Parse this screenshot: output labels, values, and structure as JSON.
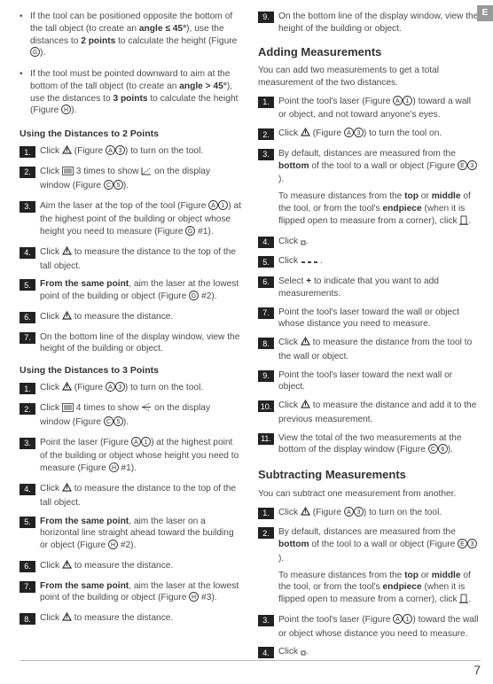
{
  "sideTab": "E",
  "pageNumber": "7",
  "left": {
    "bullets": [
      {
        "pre": "If the tool can be positioned opposite the bottom of the tall object (to create an ",
        "bold1": "angle ≤ 45°",
        "mid": "), use the distances to ",
        "bold2": "2 points",
        "post1": " to calculate the height (Figure ",
        "figIcon": "G",
        "post2": ")."
      },
      {
        "pre": "If the tool must be pointed downward to aim at the bottom of the tall object (to create an ",
        "bold1": "angle > 45°",
        "mid": "), use the distances to ",
        "bold2": "3 points",
        "post1": " to calculate the height (Figure ",
        "figIcon": "H",
        "post2": ")."
      }
    ],
    "heading2pts": "Using the Distances to 2 Points",
    "steps2": [
      {
        "n": "1.",
        "parts": [
          [
            "t",
            "Click "
          ],
          [
            "icon",
            "power"
          ],
          [
            "t",
            " (Figure "
          ],
          [
            "icon",
            "A"
          ],
          [
            "icon",
            "3"
          ],
          [
            "t",
            ") to turn on the tool."
          ]
        ]
      },
      {
        "n": "2.",
        "parts": [
          [
            "t",
            "Click "
          ],
          [
            "icon",
            "menu"
          ],
          [
            "t",
            " 3 times to show "
          ],
          [
            "icon",
            "angle2"
          ],
          [
            "t",
            " on the display window (Figure "
          ],
          [
            "icon",
            "C"
          ],
          [
            "icon",
            "5"
          ],
          [
            "t",
            ")."
          ]
        ]
      },
      {
        "n": "3.",
        "parts": [
          [
            "t",
            "Aim the laser at the top of the tool (Figure "
          ],
          [
            "icon",
            "A"
          ],
          [
            "icon",
            "1"
          ],
          [
            "t",
            ") at the highest point of the building or object whose height you need to measure (Figure "
          ],
          [
            "icon",
            "G"
          ],
          [
            "t",
            " #1)."
          ]
        ]
      },
      {
        "n": "4.",
        "parts": [
          [
            "t",
            "Click "
          ],
          [
            "icon",
            "power"
          ],
          [
            "t",
            " to measure the distance to the top of the tall object."
          ]
        ]
      },
      {
        "n": "5.",
        "parts": [
          [
            "b",
            "From the same point"
          ],
          [
            "t",
            ", aim the laser at the lowest point of the building or object (Figure "
          ],
          [
            "icon",
            "G"
          ],
          [
            "t",
            " #2)."
          ]
        ]
      },
      {
        "n": "6.",
        "parts": [
          [
            "t",
            "Click "
          ],
          [
            "icon",
            "power"
          ],
          [
            "t",
            " to measure the distance."
          ]
        ]
      },
      {
        "n": "7.",
        "parts": [
          [
            "t",
            "On the bottom line of the display window, view the height of the building or object."
          ]
        ]
      }
    ],
    "heading3pts": "Using the Distances to 3 Points",
    "steps3": [
      {
        "n": "1.",
        "parts": [
          [
            "t",
            "Click "
          ],
          [
            "icon",
            "power"
          ],
          [
            "t",
            " (Figure "
          ],
          [
            "icon",
            "A"
          ],
          [
            "icon",
            "3"
          ],
          [
            "t",
            ") to turn on the tool."
          ]
        ]
      },
      {
        "n": "2.",
        "parts": [
          [
            "t",
            "Click "
          ],
          [
            "icon",
            "menu"
          ],
          [
            "t",
            " 4 times to show "
          ],
          [
            "icon",
            "angle3"
          ],
          [
            "t",
            " on the display window (Figure "
          ],
          [
            "icon",
            "C"
          ],
          [
            "icon",
            "5"
          ],
          [
            "t",
            ")."
          ]
        ]
      },
      {
        "n": "3.",
        "parts": [
          [
            "t",
            "Point the laser (Figure "
          ],
          [
            "icon",
            "A"
          ],
          [
            "icon",
            "1"
          ],
          [
            "t",
            ") at the highest point of the building or object whose height you need to measure (Figure "
          ],
          [
            "icon",
            "H"
          ],
          [
            "t",
            " #1)."
          ]
        ]
      },
      {
        "n": "4.",
        "parts": [
          [
            "t",
            "Click "
          ],
          [
            "icon",
            "power"
          ],
          [
            "t",
            " to measure the distance to the top of the tall object."
          ]
        ]
      },
      {
        "n": "5.",
        "parts": [
          [
            "b",
            "From the same point"
          ],
          [
            "t",
            ", aim the laser on a horizontal line straight ahead toward the building or object (Figure "
          ],
          [
            "icon",
            "H"
          ],
          [
            "t",
            " #2)."
          ]
        ]
      },
      {
        "n": "6.",
        "parts": [
          [
            "t",
            "Click "
          ],
          [
            "icon",
            "power"
          ],
          [
            "t",
            " to measure the distance."
          ]
        ]
      },
      {
        "n": "7.",
        "parts": [
          [
            "b",
            "From the same point"
          ],
          [
            "t",
            ", aim the laser at the lowest point of the building or object (Figure "
          ],
          [
            "icon",
            "H"
          ],
          [
            "t",
            " #3)."
          ]
        ]
      },
      {
        "n": "8.",
        "parts": [
          [
            "t",
            "Click "
          ],
          [
            "icon",
            "power"
          ],
          [
            "t",
            " to measure the distance."
          ]
        ]
      }
    ]
  },
  "right": {
    "topStep": {
      "n": "9.",
      "parts": [
        [
          "t",
          "On the bottom line of the display window, view the height of the building or object."
        ]
      ]
    },
    "headingAdd": "Adding Measurements",
    "addIntro": "You can add two measurements to get a total measurement of the two distances.",
    "addSteps": [
      {
        "n": "1.",
        "parts": [
          [
            "t",
            "Point the tool's laser (Figure "
          ],
          [
            "icon",
            "A"
          ],
          [
            "icon",
            "1"
          ],
          [
            "t",
            ") toward a wall or object, and not toward anyone's eyes."
          ]
        ]
      },
      {
        "n": "2.",
        "parts": [
          [
            "t",
            "Click "
          ],
          [
            "icon",
            "power"
          ],
          [
            "t",
            " (Figure "
          ],
          [
            "icon",
            "A"
          ],
          [
            "icon",
            "3"
          ],
          [
            "t",
            ") to turn the tool on."
          ]
        ]
      },
      {
        "n": "3.",
        "parts": [
          [
            "t",
            "By default, distances are measured from the "
          ],
          [
            "b",
            "bottom"
          ],
          [
            "t",
            " of the tool to a wall or object (Figure "
          ],
          [
            "icon",
            "E"
          ],
          [
            "icon",
            "3"
          ],
          [
            "t",
            ")."
          ]
        ],
        "sub": [
          [
            "t",
            "To measure distances from the "
          ],
          [
            "b",
            "top"
          ],
          [
            "t",
            " or "
          ],
          [
            "b",
            "middle"
          ],
          [
            "t",
            " of the tool, or from the tool's "
          ],
          [
            "b",
            "endpiece"
          ],
          [
            "t",
            " (when it is flipped open to measure from a corner), click "
          ],
          [
            "icon",
            "ref"
          ],
          [
            "t",
            "."
          ]
        ]
      },
      {
        "n": "4.",
        "parts": [
          [
            "t",
            "Click "
          ],
          [
            "icon",
            "small"
          ],
          [
            "t",
            "."
          ]
        ]
      },
      {
        "n": "5.",
        "parts": [
          [
            "t",
            "Click "
          ],
          [
            "icon",
            "dashes"
          ],
          [
            "t",
            "."
          ]
        ]
      },
      {
        "n": "6.",
        "parts": [
          [
            "t",
            "Select "
          ],
          [
            "b",
            "+"
          ],
          [
            "t",
            " to indicate that you want to add measurements."
          ]
        ]
      },
      {
        "n": "7.",
        "parts": [
          [
            "t",
            "Point the tool's laser toward the wall or object whose distance you need to measure."
          ]
        ]
      },
      {
        "n": "8.",
        "parts": [
          [
            "t",
            "Click "
          ],
          [
            "icon",
            "power"
          ],
          [
            "t",
            " to measure the distance from the tool to the wall or object."
          ]
        ]
      },
      {
        "n": "9.",
        "parts": [
          [
            "t",
            "Point the tool's laser toward the next wall or object."
          ]
        ]
      },
      {
        "n": "10.",
        "parts": [
          [
            "t",
            "Click "
          ],
          [
            "icon",
            "power"
          ],
          [
            "t",
            " to measure the distance and add it to the previous measurement."
          ]
        ]
      },
      {
        "n": "11.",
        "parts": [
          [
            "t",
            "View the total of the two measurements at the bottom of the display window (Figure "
          ],
          [
            "icon",
            "C"
          ],
          [
            "icon",
            "6"
          ],
          [
            "t",
            ")."
          ]
        ]
      }
    ],
    "headingSub": "Subtracting Measurements",
    "subIntro": "You can subtract one measurement from another.",
    "subSteps": [
      {
        "n": "1.",
        "parts": [
          [
            "t",
            "Click "
          ],
          [
            "icon",
            "power"
          ],
          [
            "t",
            " (Figure "
          ],
          [
            "icon",
            "A"
          ],
          [
            "icon",
            "3"
          ],
          [
            "t",
            ") to turn on the tool."
          ]
        ]
      },
      {
        "n": "2.",
        "parts": [
          [
            "t",
            "By default, distances are measured from the "
          ],
          [
            "b",
            "bottom"
          ],
          [
            "t",
            " of the tool to a wall or object (Figure "
          ],
          [
            "icon",
            "E"
          ],
          [
            "icon",
            "3"
          ],
          [
            "t",
            ")."
          ]
        ],
        "sub": [
          [
            "t",
            "To measure distances from the "
          ],
          [
            "b",
            "top"
          ],
          [
            "t",
            " or "
          ],
          [
            "b",
            "middle"
          ],
          [
            "t",
            " of the tool, or from the tool's "
          ],
          [
            "b",
            "endpiece"
          ],
          [
            "t",
            " (when it is flipped open to measure from a corner), click "
          ],
          [
            "icon",
            "ref"
          ],
          [
            "t",
            "."
          ]
        ]
      },
      {
        "n": "3.",
        "parts": [
          [
            "t",
            "Point the tool's laser (Figure "
          ],
          [
            "icon",
            "A"
          ],
          [
            "icon",
            "1"
          ],
          [
            "t",
            ") toward the wall or object whose distance you need to measure."
          ]
        ]
      },
      {
        "n": "4.",
        "parts": [
          [
            "t",
            "Click "
          ],
          [
            "icon",
            "small"
          ],
          [
            "t",
            "."
          ]
        ]
      }
    ]
  }
}
